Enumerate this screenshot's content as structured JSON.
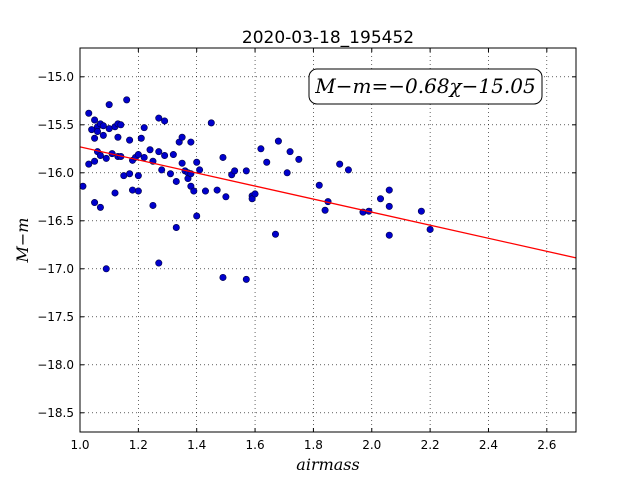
{
  "chart_data": {
    "type": "scatter",
    "title": "2020-03-18_195452",
    "xlabel": "airmass",
    "ylabel": "M−m",
    "xlim": [
      1.0,
      2.7
    ],
    "ylim": [
      -18.7,
      -14.7
    ],
    "y_inverted": true,
    "x_ticks": [
      1.0,
      1.2,
      1.4,
      1.6,
      1.8,
      2.0,
      2.2,
      2.4,
      2.6
    ],
    "x_tick_labels": [
      "1.0",
      "1.2",
      "1.4",
      "1.6",
      "1.8",
      "2.0",
      "2.2",
      "2.4",
      "2.6"
    ],
    "y_ticks": [
      -15.0,
      -15.5,
      -16.0,
      -16.5,
      -17.0,
      -17.5,
      -18.0,
      -18.5
    ],
    "y_tick_labels": [
      "−15.0",
      "−15.5",
      "−16.0",
      "−16.5",
      "−17.0",
      "−17.5",
      "−18.0",
      "−18.5"
    ],
    "grid": true,
    "annotation": "M−m=−0.68χ−15.05",
    "fit": {
      "slope": -0.68,
      "intercept": -15.05,
      "x_range": [
        1.0,
        2.7
      ],
      "color": "#ff0000"
    },
    "point_color": "#0000cc",
    "points": [
      [
        1.01,
        -16.14
      ],
      [
        1.03,
        -15.38
      ],
      [
        1.03,
        -15.91
      ],
      [
        1.04,
        -15.55
      ],
      [
        1.05,
        -15.64
      ],
      [
        1.05,
        -15.45
      ],
      [
        1.05,
        -15.88
      ],
      [
        1.05,
        -16.31
      ],
      [
        1.06,
        -15.52
      ],
      [
        1.06,
        -15.57
      ],
      [
        1.06,
        -15.78
      ],
      [
        1.07,
        -15.49
      ],
      [
        1.07,
        -15.82
      ],
      [
        1.07,
        -16.36
      ],
      [
        1.08,
        -15.51
      ],
      [
        1.08,
        -15.61
      ],
      [
        1.09,
        -15.85
      ],
      [
        1.1,
        -15.54
      ],
      [
        1.09,
        -17.0
      ],
      [
        1.1,
        -15.29
      ],
      [
        1.11,
        -15.8
      ],
      [
        1.12,
        -15.52
      ],
      [
        1.12,
        -16.21
      ],
      [
        1.13,
        -15.49
      ],
      [
        1.13,
        -15.83
      ],
      [
        1.13,
        -15.63
      ],
      [
        1.14,
        -15.5
      ],
      [
        1.14,
        -15.83
      ],
      [
        1.15,
        -16.03
      ],
      [
        1.16,
        -15.24
      ],
      [
        1.17,
        -15.66
      ],
      [
        1.17,
        -16.01
      ],
      [
        1.18,
        -15.87
      ],
      [
        1.18,
        -16.18
      ],
      [
        1.19,
        -15.84
      ],
      [
        1.2,
        -16.19
      ],
      [
        1.2,
        -15.81
      ],
      [
        1.2,
        -16.03
      ],
      [
        1.21,
        -15.64
      ],
      [
        1.22,
        -15.53
      ],
      [
        1.22,
        -15.84
      ],
      [
        1.24,
        -15.76
      ],
      [
        1.25,
        -15.88
      ],
      [
        1.25,
        -16.34
      ],
      [
        1.27,
        -15.43
      ],
      [
        1.27,
        -15.78
      ],
      [
        1.27,
        -16.94
      ],
      [
        1.28,
        -15.97
      ],
      [
        1.29,
        -15.46
      ],
      [
        1.29,
        -15.82
      ],
      [
        1.31,
        -16.01
      ],
      [
        1.32,
        -15.81
      ],
      [
        1.33,
        -16.09
      ],
      [
        1.33,
        -16.57
      ],
      [
        1.34,
        -15.68
      ],
      [
        1.35,
        -15.63
      ],
      [
        1.35,
        -15.9
      ],
      [
        1.36,
        -15.98
      ],
      [
        1.37,
        -16.0
      ],
      [
        1.37,
        -16.06
      ],
      [
        1.38,
        -16.01
      ],
      [
        1.38,
        -16.14
      ],
      [
        1.38,
        -15.68
      ],
      [
        1.39,
        -16.19
      ],
      [
        1.4,
        -15.89
      ],
      [
        1.4,
        -16.45
      ],
      [
        1.41,
        -15.97
      ],
      [
        1.43,
        -16.19
      ],
      [
        1.45,
        -15.48
      ],
      [
        1.47,
        -16.18
      ],
      [
        1.49,
        -15.84
      ],
      [
        1.49,
        -17.09
      ],
      [
        1.5,
        -16.25
      ],
      [
        1.52,
        -16.02
      ],
      [
        1.53,
        -15.98
      ],
      [
        1.57,
        -15.98
      ],
      [
        1.57,
        -17.11
      ],
      [
        1.59,
        -16.24
      ],
      [
        1.59,
        -16.27
      ],
      [
        1.6,
        -16.22
      ],
      [
        1.62,
        -15.75
      ],
      [
        1.64,
        -15.89
      ],
      [
        1.67,
        -16.64
      ],
      [
        1.68,
        -15.67
      ],
      [
        1.71,
        -16.0
      ],
      [
        1.72,
        -15.78
      ],
      [
        1.75,
        -15.86
      ],
      [
        1.82,
        -16.13
      ],
      [
        1.84,
        -16.39
      ],
      [
        1.85,
        -16.3
      ],
      [
        1.89,
        -15.91
      ],
      [
        1.92,
        -15.97
      ],
      [
        1.97,
        -16.41
      ],
      [
        1.99,
        -16.4
      ],
      [
        2.03,
        -16.27
      ],
      [
        2.06,
        -16.18
      ],
      [
        2.06,
        -16.35
      ],
      [
        2.06,
        -16.65
      ],
      [
        2.17,
        -16.4
      ],
      [
        2.2,
        -16.59
      ]
    ]
  }
}
